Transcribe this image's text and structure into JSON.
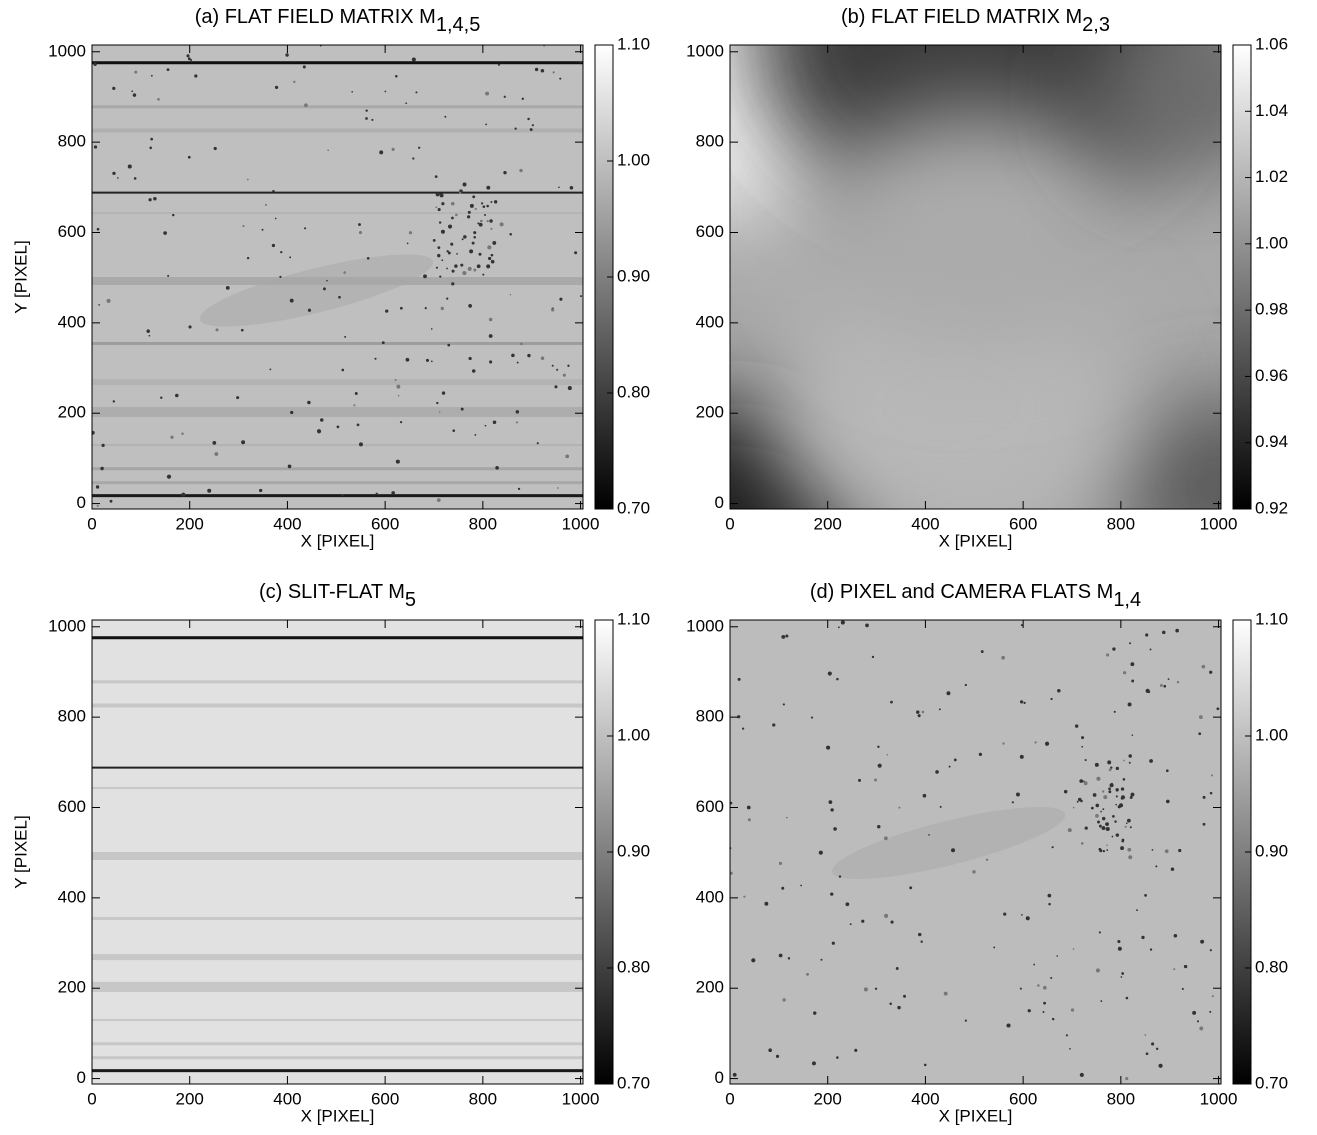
{
  "chart_data": [
    {
      "type": "image",
      "title": "(a) FLAT FIELD MATRIX  M",
      "title_subscript": "1,4,5",
      "xlabel": "X  [PIXEL]",
      "ylabel": "Y  [PIXEL]",
      "xlim": [
        0,
        1005
      ],
      "ylim": [
        -12,
        1015
      ],
      "xticks": [
        0,
        200,
        400,
        600,
        800,
        1000
      ],
      "yticks": [
        0,
        200,
        400,
        600,
        800,
        1000
      ],
      "colormap": "gray",
      "clim": [
        0.7,
        1.1
      ],
      "cticks": [
        {
          "value": 0.7,
          "label": "0.70"
        },
        {
          "value": 0.8,
          "label": "0.80"
        },
        {
          "value": 0.9,
          "label": "0.90"
        },
        {
          "value": 1.0,
          "label": "1.00"
        },
        {
          "value": 1.1,
          "label": "1.10"
        }
      ]
    },
    {
      "type": "image",
      "title": "(b) FLAT FIELD MATRIX  M",
      "title_subscript": "2,3",
      "xlabel": "X [PIXEL]",
      "xlim": [
        0,
        1005
      ],
      "ylim": [
        -12,
        1015
      ],
      "xticks": [
        0,
        200,
        400,
        600,
        800,
        1000
      ],
      "yticks": [
        0,
        200,
        400,
        600,
        800,
        1000
      ],
      "colormap": "gray",
      "clim": [
        0.92,
        1.06
      ],
      "cticks": [
        {
          "value": 0.92,
          "label": "0.92"
        },
        {
          "value": 0.94,
          "label": "0.94"
        },
        {
          "value": 0.96,
          "label": "0.96"
        },
        {
          "value": 0.98,
          "label": "0.98"
        },
        {
          "value": 1.0,
          "label": "1.00"
        },
        {
          "value": 1.02,
          "label": "1.02"
        },
        {
          "value": 1.04,
          "label": "1.04"
        },
        {
          "value": 1.06,
          "label": "1.06"
        }
      ]
    },
    {
      "type": "image",
      "title": "(c) SLIT-FLAT M",
      "title_subscript": "5",
      "xlabel": "X  [PIXEL]",
      "ylabel": "Y  [PIXEL]",
      "xlim": [
        0,
        1005
      ],
      "ylim": [
        -12,
        1015
      ],
      "xticks": [
        0,
        200,
        400,
        600,
        800,
        1000
      ],
      "yticks": [
        0,
        200,
        400,
        600,
        800,
        1000
      ],
      "colormap": "gray",
      "clim": [
        0.7,
        1.1
      ],
      "cticks": [
        {
          "value": 0.7,
          "label": "0.70"
        },
        {
          "value": 0.8,
          "label": "0.80"
        },
        {
          "value": 0.9,
          "label": "0.90"
        },
        {
          "value": 1.0,
          "label": "1.00"
        },
        {
          "value": 1.1,
          "label": "1.10"
        }
      ]
    },
    {
      "type": "image",
      "title": "(d) PIXEL and CAMERA FLATS M",
      "title_subscript": "1,4",
      "xlabel": "X  [PIXEL]",
      "xlim": [
        0,
        1005
      ],
      "ylim": [
        -12,
        1015
      ],
      "xticks": [
        0,
        200,
        400,
        600,
        800,
        1000
      ],
      "yticks": [
        0,
        200,
        400,
        600,
        800,
        1000
      ],
      "colormap": "gray",
      "clim": [
        0.7,
        1.1
      ],
      "cticks": [
        {
          "value": 0.7,
          "label": "0.70"
        },
        {
          "value": 0.8,
          "label": "0.80"
        },
        {
          "value": 0.9,
          "label": "0.90"
        },
        {
          "value": 1.0,
          "label": "1.00"
        },
        {
          "value": 1.1,
          "label": "1.10"
        }
      ]
    }
  ]
}
